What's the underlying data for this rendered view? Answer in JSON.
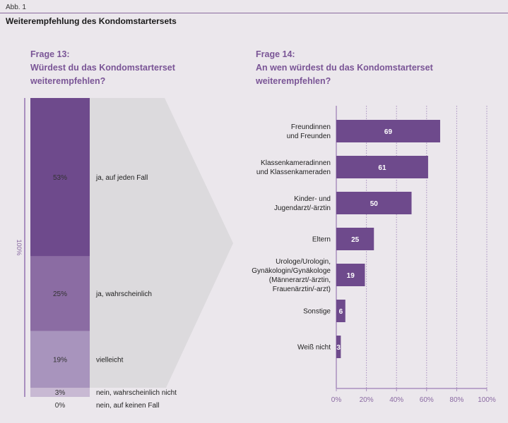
{
  "figure_label": "Abb. 1",
  "title": "Weiterempfehlung des Kondomstartersets",
  "chart_data": [
    {
      "type": "bar",
      "stacked": true,
      "title_lines": [
        "Frage 13:",
        "Würdest du das Kondomstarterset",
        "weiterempfehlen?"
      ],
      "total_label": "100%",
      "categories": [
        "ja, auf jeden Fall",
        "ja, wahrscheinlich",
        "vielleicht",
        "nein, wahrscheinlich nicht",
        "nein, auf keinen Fall"
      ],
      "values": [
        53,
        25,
        19,
        3,
        0
      ],
      "value_labels": [
        "53%",
        "25%",
        "19%",
        "3%",
        "0%"
      ],
      "colors": [
        "#6e4a8c",
        "#8b6ca3",
        "#a894bd",
        "#c8b9d3",
        "#e0d8e6"
      ]
    },
    {
      "type": "bar",
      "orientation": "horizontal",
      "title_lines": [
        "Frage 14:",
        "An wen würdest du das Kondomstarterset",
        "weiterempfehlen?"
      ],
      "categories": [
        [
          "Freundinnen",
          "und Freunden"
        ],
        [
          "Klassenkameradinnen",
          "und Klassenkameraden"
        ],
        [
          "Kinder- und",
          "Jugendarzt/-ärztin"
        ],
        [
          "Eltern"
        ],
        [
          "Urologe/Urologin,",
          "Gynäkologin/Gynäkologe",
          "(Männerarzt/-ärztin,",
          "Frauenärztin/-arzt)"
        ],
        [
          "Sonstige"
        ],
        [
          "Weiß nicht"
        ]
      ],
      "values": [
        69,
        61,
        50,
        25,
        19,
        6,
        3
      ],
      "value_labels": [
        "69",
        "61",
        "50",
        "25",
        "19",
        "6",
        "3"
      ],
      "xlim": [
        0,
        100
      ],
      "xticks": [
        "0%",
        "20%",
        "40%",
        "60%",
        "80%",
        "100%"
      ],
      "grid": true,
      "color": "#6e4a8c"
    }
  ]
}
